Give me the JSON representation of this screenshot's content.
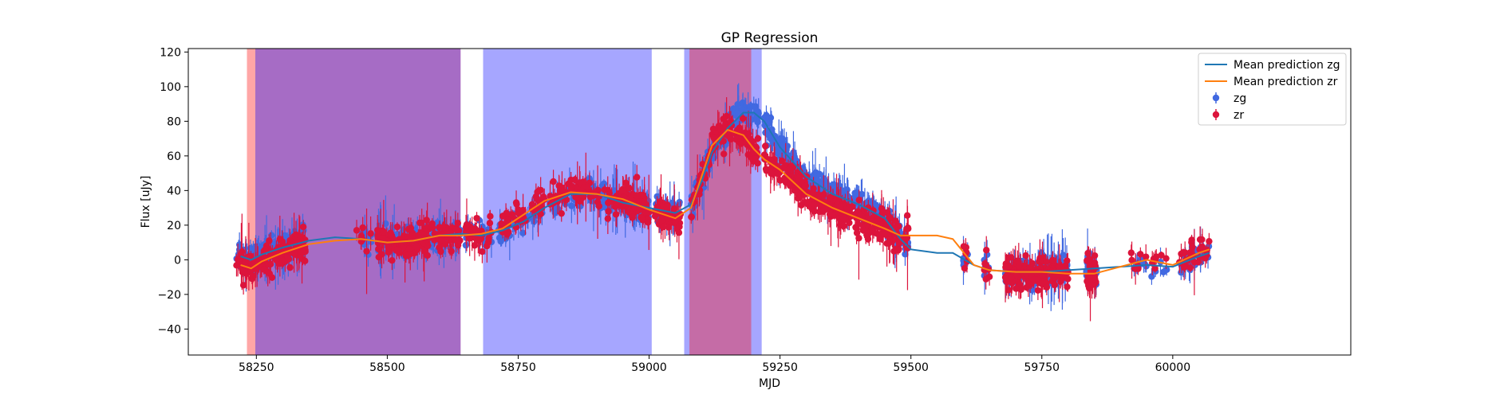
{
  "chart_data": {
    "type": "scatter",
    "title": "GP Regression",
    "xlabel": "MJD",
    "ylabel": "Flux [uJy]",
    "xlim": [
      58120,
      60340
    ],
    "ylim": [
      -55,
      122
    ],
    "xticks": [
      58250,
      58500,
      58750,
      59000,
      59250,
      59500,
      59750,
      60000
    ],
    "yticks": [
      -40,
      -20,
      0,
      20,
      40,
      60,
      80,
      100,
      120
    ],
    "grid": false,
    "legend": {
      "position": "top-right",
      "entries": [
        {
          "label": "Mean prediction zg",
          "kind": "line",
          "color": "#1f77b4"
        },
        {
          "label": "Mean prediction zr",
          "kind": "line",
          "color": "#ff7f0e"
        },
        {
          "label": "zg",
          "kind": "errorbar",
          "color": "#4169e1"
        },
        {
          "label": "zr",
          "kind": "errorbar",
          "color": "#dc143c"
        }
      ]
    },
    "shaded_regions": [
      {
        "x0": 58232,
        "x1": 58248,
        "color": "#ff0000",
        "opacity": 0.35
      },
      {
        "x0": 58248,
        "x1": 58640,
        "color": "#ff0000",
        "opacity": 0.35
      },
      {
        "x0": 58248,
        "x1": 58640,
        "color": "#0000ff",
        "opacity": 0.35
      },
      {
        "x0": 58683,
        "x1": 59005,
        "color": "#0000ff",
        "opacity": 0.35
      },
      {
        "x0": 59067,
        "x1": 59215,
        "color": "#0000ff",
        "opacity": 0.35
      },
      {
        "x0": 59077,
        "x1": 59195,
        "color": "#ff0000",
        "opacity": 0.35
      }
    ],
    "series": [
      {
        "name": "Mean prediction zg",
        "kind": "line",
        "color": "#1f77b4",
        "x": [
          58220,
          58240,
          58260,
          58300,
          58350,
          58400,
          58450,
          58500,
          58550,
          58600,
          58640,
          58680,
          58720,
          58760,
          58800,
          58850,
          58900,
          58950,
          59000,
          59050,
          59080,
          59100,
          59120,
          59150,
          59180,
          59200,
          59220,
          59250,
          59300,
          59350,
          59400,
          59450,
          59480,
          59500,
          59550,
          59580,
          59620,
          59650,
          59700,
          59750,
          59800,
          59850,
          59900,
          59950,
          60000,
          60050,
          60070
        ],
        "y": [
          2,
          0,
          3,
          7,
          11,
          13,
          12,
          10,
          11,
          14,
          15,
          14,
          17,
          22,
          30,
          38,
          38,
          33,
          30,
          27,
          32,
          45,
          62,
          76,
          85,
          85,
          80,
          65,
          48,
          38,
          32,
          24,
          12,
          6,
          4,
          4,
          -3,
          -6,
          -7,
          -7,
          -6,
          -5,
          -4,
          -3,
          -4,
          2,
          4
        ]
      },
      {
        "name": "Mean prediction zr",
        "kind": "line",
        "color": "#ff7f0e",
        "x": [
          58220,
          58240,
          58260,
          58300,
          58350,
          58400,
          58450,
          58500,
          58550,
          58600,
          58640,
          58680,
          58720,
          58760,
          58800,
          58850,
          58900,
          58950,
          59000,
          59050,
          59080,
          59100,
          59120,
          59150,
          59180,
          59200,
          59220,
          59250,
          59300,
          59350,
          59400,
          59450,
          59480,
          59500,
          59550,
          59580,
          59620,
          59650,
          59700,
          59750,
          59800,
          59850,
          59900,
          59950,
          60000,
          60050,
          60070
        ],
        "y": [
          -3,
          -5,
          -1,
          4,
          9,
          11,
          12,
          10,
          11,
          14,
          14,
          15,
          18,
          26,
          34,
          39,
          38,
          35,
          29,
          24,
          30,
          48,
          66,
          75,
          72,
          64,
          58,
          52,
          38,
          30,
          24,
          18,
          14,
          14,
          14,
          12,
          -3,
          -6,
          -7,
          -7,
          -8,
          -8,
          -4,
          0,
          -3,
          4,
          6
        ]
      }
    ]
  }
}
